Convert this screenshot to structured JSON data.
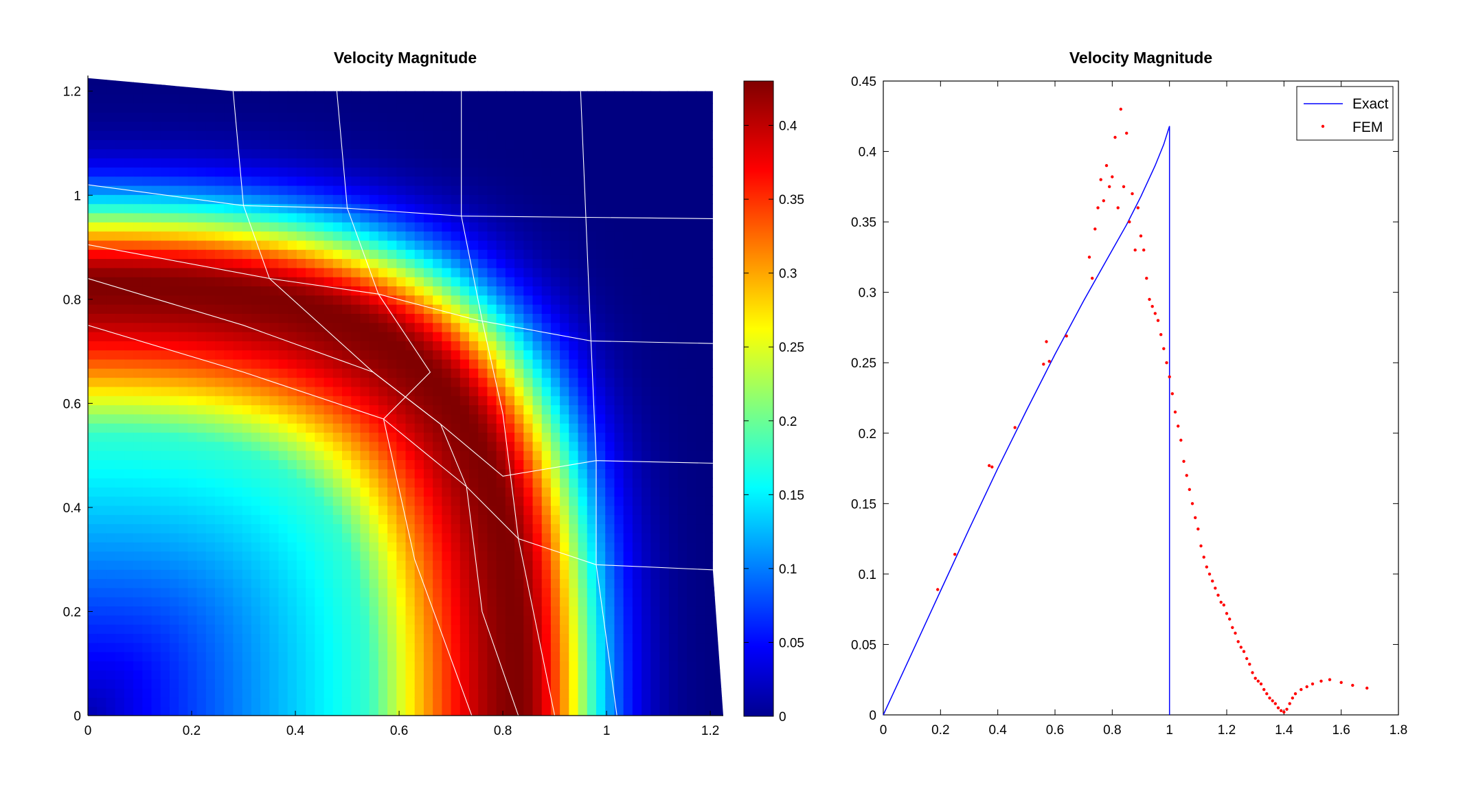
{
  "chart_data": [
    {
      "type": "heatmap",
      "title": "Velocity Magnitude",
      "xlabel": "",
      "ylabel": "",
      "xlim": [
        0,
        1.225
      ],
      "ylim": [
        0,
        1.23
      ],
      "xticks": [
        "0",
        "0.2",
        "0.4",
        "0.6",
        "0.8",
        "1",
        "1.2"
      ],
      "yticks": [
        "0",
        "0.2",
        "0.4",
        "0.6",
        "0.8",
        "1",
        "1.2"
      ],
      "colorbar": {
        "range": [
          0,
          0.43
        ],
        "ticks": [
          "0",
          "0.05",
          "0.1",
          "0.15",
          "0.2",
          "0.25",
          "0.3",
          "0.35",
          "0.4"
        ]
      },
      "colormap": "jet",
      "mesh_color": "#ffffff",
      "peak_band": {
        "x_intercept": 0.83,
        "y_intercept": 0.83,
        "peak_value": 0.43
      }
    },
    {
      "type": "scatter",
      "title": "Velocity Magnitude",
      "xlabel": "",
      "ylabel": "",
      "xlim": [
        0,
        1.8
      ],
      "ylim": [
        0,
        0.45
      ],
      "xticks": [
        "0",
        "0.2",
        "0.4",
        "0.6",
        "0.8",
        "1",
        "1.2",
        "1.4",
        "1.6",
        "1.8"
      ],
      "yticks": [
        "0",
        "0.05",
        "0.1",
        "0.15",
        "0.2",
        "0.25",
        "0.3",
        "0.35",
        "0.4",
        "0.45"
      ],
      "legend": {
        "position": "top-right",
        "entries": [
          "Exact",
          "FEM"
        ]
      },
      "series": [
        {
          "name": "Exact",
          "kind": "line",
          "color": "#0000ff",
          "x": [
            0,
            0.1,
            0.2,
            0.3,
            0.4,
            0.5,
            0.6,
            0.7,
            0.8,
            0.85,
            0.9,
            0.95,
            0.98,
            1.0,
            1.0
          ],
          "y": [
            0,
            0.044,
            0.088,
            0.132,
            0.175,
            0.216,
            0.256,
            0.294,
            0.33,
            0.348,
            0.368,
            0.39,
            0.405,
            0.418,
            0
          ]
        },
        {
          "name": "FEM",
          "kind": "scatter",
          "color": "#ff0000",
          "x": [
            0.19,
            0.25,
            0.37,
            0.38,
            0.46,
            0.56,
            0.57,
            0.58,
            0.64,
            0.72,
            0.73,
            0.74,
            0.75,
            0.76,
            0.77,
            0.78,
            0.79,
            0.8,
            0.81,
            0.82,
            0.83,
            0.84,
            0.85,
            0.86,
            0.87,
            0.88,
            0.89,
            0.9,
            0.91,
            0.92,
            0.93,
            0.94,
            0.95,
            0.96,
            0.97,
            0.98,
            0.99,
            1.0,
            1.01,
            1.02,
            1.03,
            1.04,
            1.05,
            1.06,
            1.07,
            1.08,
            1.09,
            1.1,
            1.11,
            1.12,
            1.13,
            1.14,
            1.15,
            1.16,
            1.17,
            1.18,
            1.19,
            1.2,
            1.21,
            1.22,
            1.23,
            1.24,
            1.25,
            1.26,
            1.27,
            1.28,
            1.29,
            1.3,
            1.31,
            1.32,
            1.33,
            1.34,
            1.35,
            1.36,
            1.37,
            1.38,
            1.39,
            1.4,
            1.41,
            1.42,
            1.43,
            1.44,
            1.46,
            1.48,
            1.5,
            1.53,
            1.56,
            1.6,
            1.64,
            1.69
          ],
          "y": [
            0.089,
            0.114,
            0.177,
            0.176,
            0.204,
            0.249,
            0.265,
            0.251,
            0.269,
            0.325,
            0.31,
            0.345,
            0.36,
            0.38,
            0.365,
            0.39,
            0.375,
            0.382,
            0.41,
            0.36,
            0.43,
            0.375,
            0.413,
            0.35,
            0.37,
            0.33,
            0.36,
            0.34,
            0.33,
            0.31,
            0.295,
            0.29,
            0.285,
            0.28,
            0.27,
            0.26,
            0.25,
            0.24,
            0.228,
            0.215,
            0.205,
            0.195,
            0.18,
            0.17,
            0.16,
            0.15,
            0.14,
            0.132,
            0.12,
            0.112,
            0.105,
            0.1,
            0.095,
            0.09,
            0.085,
            0.08,
            0.078,
            0.072,
            0.068,
            0.062,
            0.058,
            0.052,
            0.048,
            0.045,
            0.04,
            0.036,
            0.03,
            0.026,
            0.024,
            0.022,
            0.018,
            0.015,
            0.012,
            0.01,
            0.008,
            0.005,
            0.003,
            0.002,
            0.004,
            0.008,
            0.012,
            0.015,
            0.018,
            0.02,
            0.022,
            0.024,
            0.025,
            0.023,
            0.021,
            0.019
          ]
        }
      ]
    }
  ]
}
